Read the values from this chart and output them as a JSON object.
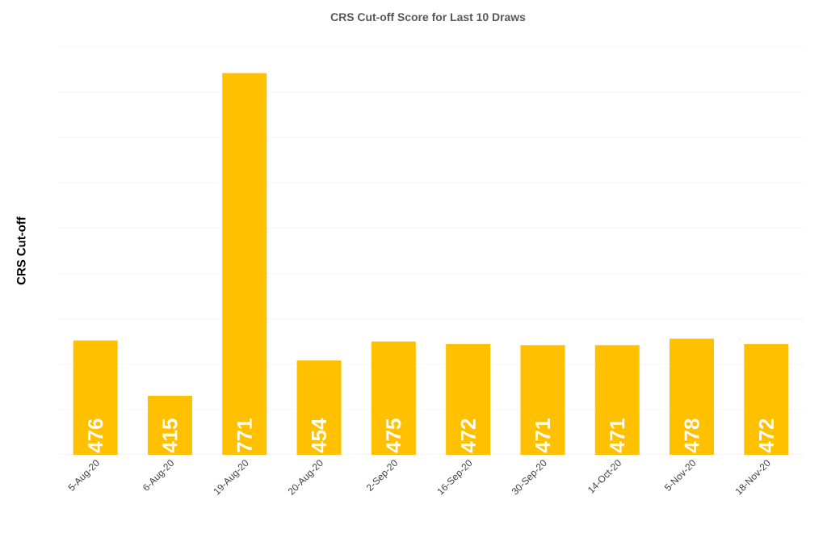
{
  "chart_data": {
    "type": "bar",
    "title": "CRS Cut-off Score for Last 10 Draws",
    "ylabel": "CRS Cut-off",
    "categories": [
      "5-Aug-20",
      "6-Aug-20",
      "19-Aug-20",
      "20-Aug-20",
      "2-Sep-20",
      "16-Sep-20",
      "30-Sep-20",
      "14-Oct-20",
      "5-Nov-20",
      "18-Nov-20"
    ],
    "values": [
      476,
      415,
      771,
      454,
      475,
      472,
      471,
      471,
      478,
      472
    ],
    "color": "#ffc000",
    "ylim": [
      350,
      800
    ],
    "yticks": [
      {
        "value": 400,
        "label": null
      },
      {
        "value": 450,
        "label": null
      },
      {
        "value": 500,
        "label": null
      },
      {
        "value": 550,
        "label": null
      },
      {
        "value": 600,
        "label": null
      },
      {
        "value": 650,
        "label": null
      },
      {
        "value": 700,
        "label": null
      },
      {
        "value": 750,
        "label": null
      },
      {
        "value": 800,
        "label": null
      }
    ],
    "tick_labels": "x",
    "grid": "y",
    "data_labels": true
  }
}
